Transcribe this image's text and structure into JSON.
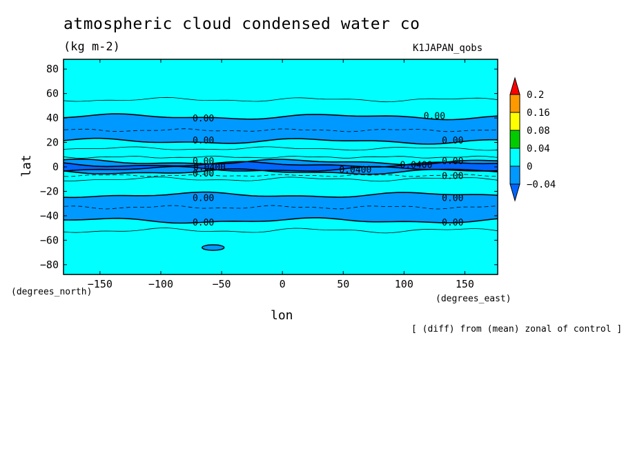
{
  "chart_data": {
    "type": "contour",
    "title": "atmospheric cloud condensed water co",
    "units": "(kg m-2)",
    "run_label": "K1JAPAN_qobs",
    "xlabel": "lon",
    "ylabel": "lat",
    "x_unit_label": "(degrees_east)",
    "y_unit_label": "(degrees_north)",
    "note": "[ (diff) from (mean) zonal of control ]",
    "xlim": [
      -180,
      177
    ],
    "ylim": [
      -88,
      88
    ],
    "x_ticks": [
      -150,
      -100,
      -50,
      0,
      50,
      100,
      150
    ],
    "y_ticks": [
      80,
      60,
      40,
      20,
      0,
      -20,
      -40,
      -60,
      -80
    ],
    "colorbar": {
      "levels": [
        "0.2",
        "0.16",
        "0.08",
        "0.04",
        "0",
        "-0.04"
      ],
      "colors": {
        "above_0.2": "#ff0000",
        "0.16_0.2": "#ff9900",
        "0.08_0.16": "#ffff00",
        "0.04_0.08": "#00cc00",
        "0_0.04": "#00ffff",
        "-0.04_0": "#0099ff",
        "below_-0.04": "#0066ff"
      }
    },
    "contour_labels": [
      {
        "text": "0.00",
        "lon": -65,
        "lat": 40
      },
      {
        "text": "0.00",
        "lon": 125,
        "lat": 42
      },
      {
        "text": "0.00",
        "lon": -65,
        "lat": 22
      },
      {
        "text": "0.00",
        "lon": 140,
        "lat": 22
      },
      {
        "text": "0.00",
        "lon": -65,
        "lat": 5
      },
      {
        "text": "0.00",
        "lon": 140,
        "lat": 5
      },
      {
        "text": "0.0400",
        "lon": -60,
        "lat": 0
      },
      {
        "text": "0.0400",
        "lon": 60,
        "lat": -2
      },
      {
        "text": "0.0400",
        "lon": 110,
        "lat": 2
      },
      {
        "text": "0.00",
        "lon": -65,
        "lat": -5
      },
      {
        "text": "0.00",
        "lon": 140,
        "lat": -7
      },
      {
        "text": "0.00",
        "lon": -65,
        "lat": -25
      },
      {
        "text": "0.00",
        "lon": 140,
        "lat": -25
      },
      {
        "text": "0.00",
        "lon": -65,
        "lat": -45
      },
      {
        "text": "0.00",
        "lon": 140,
        "lat": -45
      }
    ],
    "bands": [
      {
        "name": "negative band north",
        "lat_from": 21,
        "lat_to": 41,
        "level": "-0.04_0"
      },
      {
        "name": "negative band tropical",
        "lat_from": -4,
        "lat_to": 4,
        "level": "-0.04_0"
      },
      {
        "name": "strong negative core",
        "lat_from": -2,
        "lat_to": 2,
        "level": "below_-0.04"
      },
      {
        "name": "negative band south",
        "lat_from": -44,
        "lat_to": -23,
        "level": "-0.04_0"
      }
    ]
  }
}
